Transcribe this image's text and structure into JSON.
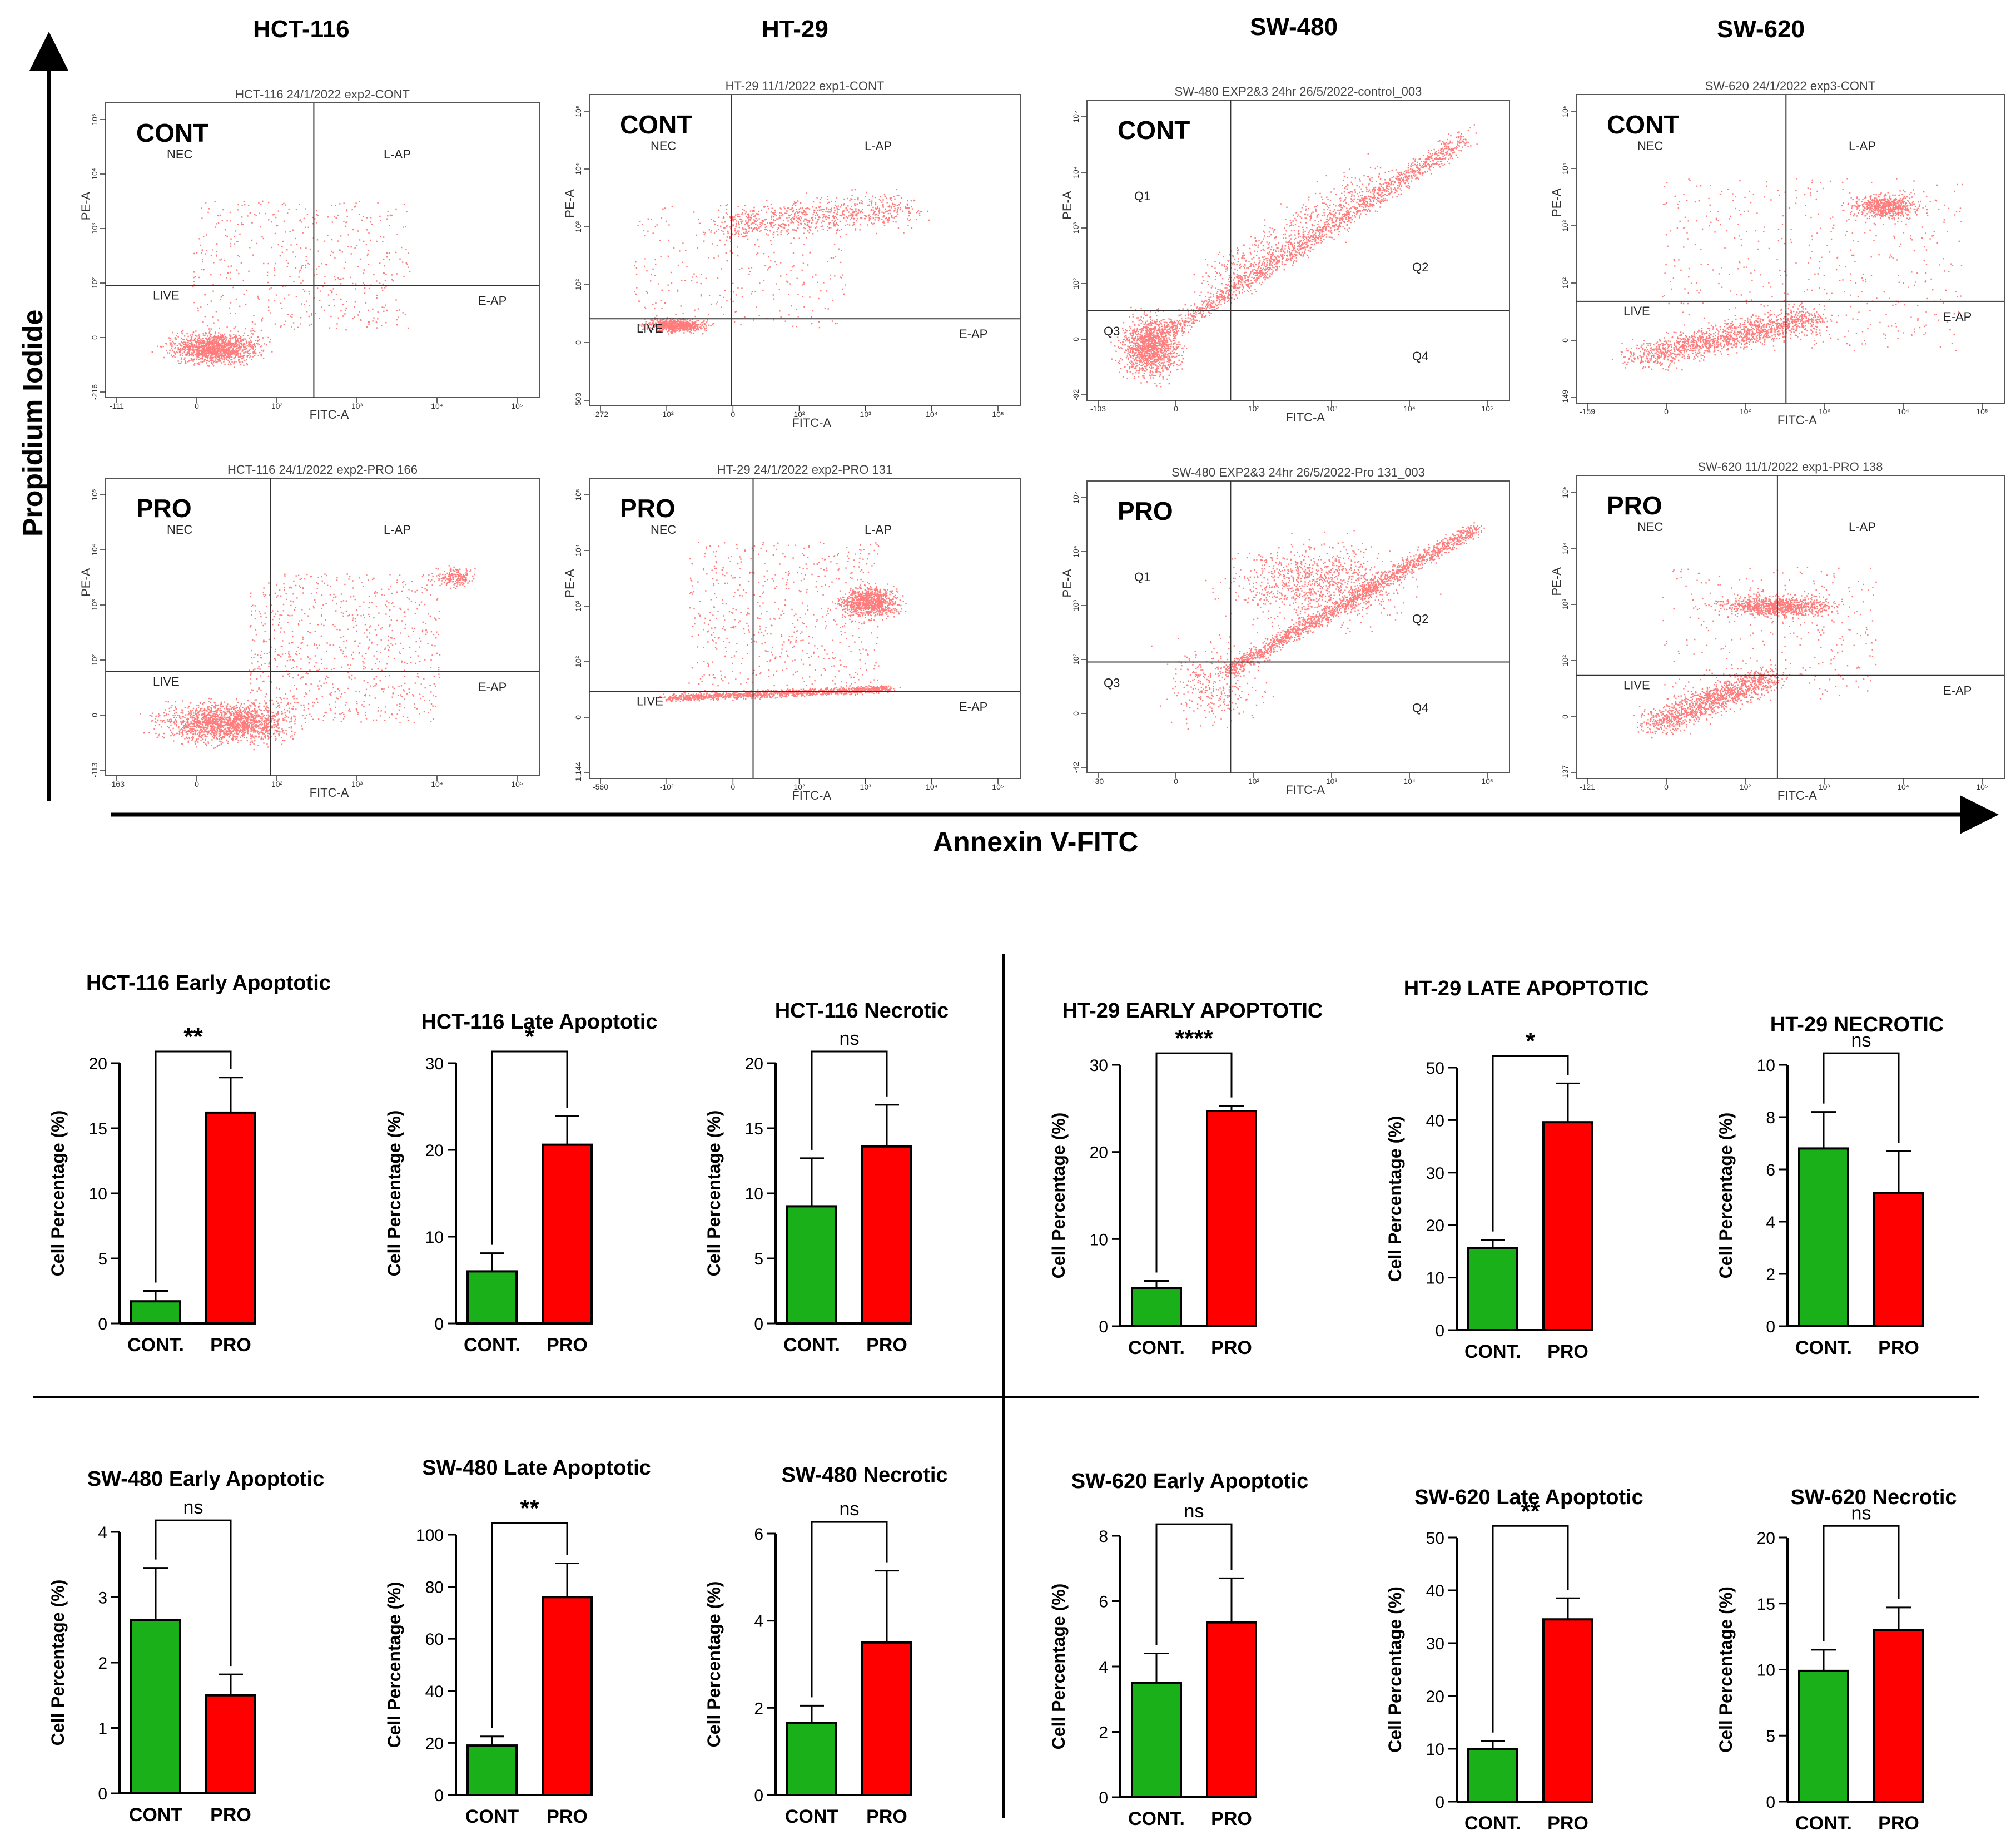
{
  "figure": {
    "cell_lines": [
      "HCT-116",
      "HT-29",
      "SW-480",
      "SW-620"
    ],
    "y_axis_label": "Propidium Iodide",
    "x_axis_label": "Annexin V-FITC",
    "row_labels": [
      "CONT",
      "PRO"
    ]
  },
  "flow_panels": [
    {
      "cell_line": "HCT-116",
      "condition": "CONT",
      "header": "HCT-116 24/1/2022 exp2-CONT",
      "quadrants": [
        "NEC",
        "L-AP",
        "LIVE",
        "E-AP"
      ],
      "x_axis": "FITC-A",
      "y_axis": "PE-A",
      "x_ticks": [
        "-111",
        "0",
        "10²",
        "10³",
        "10⁴",
        "10⁵"
      ],
      "y_ticks": [
        "-216",
        "0",
        "10²",
        "10³",
        "10⁴",
        "10⁵"
      ]
    },
    {
      "cell_line": "HT-29",
      "condition": "CONT",
      "header": "HT-29 11/1/2022 exp1-CONT",
      "quadrants": [
        "NEC",
        "L-AP",
        "LIVE",
        "E-AP"
      ],
      "x_axis": "FITC-A",
      "y_axis": "PE-A",
      "x_ticks": [
        "-272",
        "-10²",
        "0",
        "10²",
        "10³",
        "10⁴",
        "10⁵"
      ],
      "y_ticks": [
        "-503",
        "0",
        "10²",
        "10³",
        "10⁴",
        "10⁵"
      ]
    },
    {
      "cell_line": "SW-480",
      "condition": "CONT",
      "header": "SW-480 EXP2&3 24hr 26/5/2022-control_003",
      "quadrants": [
        "Q1",
        "Q2",
        "Q3",
        "Q4"
      ],
      "x_axis": "FITC-A",
      "y_axis": "PE-A",
      "x_ticks": [
        "-103",
        "0",
        "10²",
        "10³",
        "10⁴",
        "10⁵"
      ],
      "y_ticks": [
        "-92",
        "0",
        "10²",
        "10³",
        "10⁴",
        "10⁵"
      ]
    },
    {
      "cell_line": "SW-620",
      "condition": "CONT",
      "header": "SW-620 24/1/2022 exp3-CONT",
      "quadrants": [
        "NEC",
        "L-AP",
        "LIVE",
        "E-AP"
      ],
      "x_axis": "FITC-A",
      "y_axis": "PE-A",
      "x_ticks": [
        "-159",
        "0",
        "10²",
        "10³",
        "10⁴",
        "10⁵"
      ],
      "y_ticks": [
        "-149",
        "0",
        "10²",
        "10³",
        "10⁴",
        "10⁵"
      ]
    },
    {
      "cell_line": "HCT-116",
      "condition": "PRO",
      "header": "HCT-116 24/1/2022 exp2-PRO 166",
      "quadrants": [
        "NEC",
        "L-AP",
        "LIVE",
        "E-AP"
      ],
      "x_axis": "FITC-A",
      "y_axis": "PE-A",
      "x_ticks": [
        "-163",
        "0",
        "10²",
        "10³",
        "10⁴",
        "10⁵"
      ],
      "y_ticks": [
        "-113",
        "0",
        "10²",
        "10³",
        "10⁴",
        "10⁵"
      ]
    },
    {
      "cell_line": "HT-29",
      "condition": "PRO",
      "header": "HT-29 24/1/2022 exp2-PRO 131",
      "quadrants": [
        "NEC",
        "L-AP",
        "LIVE",
        "E-AP"
      ],
      "x_axis": "FITC-A",
      "y_axis": "PE-A",
      "x_ticks": [
        "-560",
        "-10²",
        "0",
        "10²",
        "10³",
        "10⁴",
        "10⁵"
      ],
      "y_ticks": [
        "-1,144",
        "0",
        "10²",
        "10³",
        "10⁴",
        "10⁵"
      ]
    },
    {
      "cell_line": "SW-480",
      "condition": "PRO",
      "header": "SW-480 EXP2&3 24hr 26/5/2022-Pro 131_003",
      "quadrants": [
        "Q1",
        "Q2",
        "Q3",
        "Q4"
      ],
      "x_axis": "FITC-A",
      "y_axis": "PE-A",
      "x_ticks": [
        "-30",
        "0",
        "10²",
        "10³",
        "10⁴",
        "10⁵"
      ],
      "y_ticks": [
        "-42",
        "0",
        "10²",
        "10³",
        "10⁴",
        "10⁵"
      ]
    },
    {
      "cell_line": "SW-620",
      "condition": "PRO",
      "header": "SW-620 11/1/2022 exp1-PRO 138",
      "quadrants": [
        "NEC",
        "L-AP",
        "LIVE",
        "E-AP"
      ],
      "x_axis": "FITC-A",
      "y_axis": "PE-A",
      "x_ticks": [
        "-121",
        "0",
        "10²",
        "10³",
        "10⁴",
        "10⁵"
      ],
      "y_ticks": [
        "-137",
        "0",
        "10²",
        "10³",
        "10⁴",
        "10⁵"
      ]
    }
  ],
  "colors": {
    "control": "#1ab01a",
    "pro": "#ff0000",
    "dots": "#ff1010",
    "text": "#000000"
  },
  "chart_data": [
    {
      "type": "bar",
      "title": "HCT-116 Early Apoptotic",
      "categories": [
        "CONT.",
        "PRO"
      ],
      "values": [
        1.7,
        16.2
      ],
      "errors": [
        0.8,
        2.7
      ],
      "ylim": [
        0,
        20
      ],
      "yticks": [
        "0",
        "5",
        "10",
        "15",
        "20"
      ],
      "ylabel": "Cell Percentage (%)",
      "significance": "**"
    },
    {
      "type": "bar",
      "title": "HCT-116 Late Apoptotic",
      "categories": [
        "CONT.",
        "PRO"
      ],
      "values": [
        6.0,
        20.6
      ],
      "errors": [
        2.1,
        3.3
      ],
      "ylim": [
        0,
        30
      ],
      "yticks": [
        "0",
        "10",
        "20",
        "30"
      ],
      "ylabel": "Cell Percentage (%)",
      "significance": "*"
    },
    {
      "type": "bar",
      "title": "HCT-116 Necrotic",
      "categories": [
        "CONT.",
        "PRO"
      ],
      "values": [
        9.0,
        13.6
      ],
      "errors": [
        3.7,
        3.2
      ],
      "ylim": [
        0,
        20
      ],
      "yticks": [
        "0",
        "5",
        "10",
        "15",
        "20"
      ],
      "ylabel": "Cell Percentage (%)",
      "significance": "ns"
    },
    {
      "type": "bar",
      "title": "HT-29 EARLY APOPTOTIC",
      "categories": [
        "CONT.",
        "PRO"
      ],
      "values": [
        4.4,
        24.7
      ],
      "errors": [
        0.8,
        0.6
      ],
      "ylim": [
        0,
        30
      ],
      "yticks": [
        "0",
        "10",
        "20",
        "30"
      ],
      "ylabel": "Cell Percentage (%)",
      "significance": "****"
    },
    {
      "type": "bar",
      "title": "HT-29 LATE APOPTOTIC",
      "categories": [
        "CONT.",
        "PRO"
      ],
      "values": [
        15.6,
        39.6
      ],
      "errors": [
        1.6,
        7.4
      ],
      "ylim": [
        0,
        50
      ],
      "yticks": [
        "0",
        "10",
        "20",
        "30",
        "40",
        "50"
      ],
      "ylabel": "Cell Percentage (%)",
      "significance": "*"
    },
    {
      "type": "bar",
      "title": "HT-29 NECROTIC",
      "categories": [
        "CONT.",
        "PRO"
      ],
      "values": [
        6.8,
        5.1
      ],
      "errors": [
        1.4,
        1.6
      ],
      "ylim": [
        0,
        10
      ],
      "yticks": [
        "0",
        "2",
        "4",
        "6",
        "8",
        "10"
      ],
      "ylabel": "Cell Percentage (%)",
      "significance": "ns"
    },
    {
      "type": "bar",
      "title": "SW-480 Early Apoptotic",
      "categories": [
        "CONT",
        "PRO"
      ],
      "values": [
        2.65,
        1.5
      ],
      "errors": [
        0.8,
        0.32
      ],
      "ylim": [
        0,
        4
      ],
      "yticks": [
        "0",
        "1",
        "2",
        "3",
        "4"
      ],
      "ylabel": "Cell Percentage (%)",
      "significance": "ns"
    },
    {
      "type": "bar",
      "title": "SW-480 Late Apoptotic",
      "categories": [
        "CONT",
        "PRO"
      ],
      "values": [
        19,
        76
      ],
      "errors": [
        3.5,
        13
      ],
      "ylim": [
        0,
        100
      ],
      "yticks": [
        "0",
        "20",
        "40",
        "60",
        "80",
        "100"
      ],
      "ylabel": "Cell Percentage (%)",
      "significance": "**"
    },
    {
      "type": "bar",
      "title": "SW-480 Necrotic",
      "categories": [
        "CONT",
        "PRO"
      ],
      "values": [
        1.65,
        3.5
      ],
      "errors": [
        0.4,
        1.65
      ],
      "ylim": [
        0,
        6
      ],
      "yticks": [
        "0",
        "2",
        "4",
        "6"
      ],
      "ylabel": "Cell Percentage (%)",
      "significance": "ns"
    },
    {
      "type": "bar",
      "title": "SW-620 Early Apoptotic",
      "categories": [
        "CONT.",
        "PRO"
      ],
      "values": [
        3.5,
        5.35
      ],
      "errors": [
        0.9,
        1.35
      ],
      "ylim": [
        0,
        8
      ],
      "yticks": [
        "0",
        "2",
        "4",
        "6",
        "8"
      ],
      "ylabel": "Cell Percentage (%)",
      "significance": "ns"
    },
    {
      "type": "bar",
      "title": "SW-620 Late Apoptotic",
      "categories": [
        "CONT.",
        "PRO"
      ],
      "values": [
        10,
        34.5
      ],
      "errors": [
        1.5,
        4
      ],
      "ylim": [
        0,
        50
      ],
      "yticks": [
        "0",
        "10",
        "20",
        "30",
        "40",
        "50"
      ],
      "ylabel": "Cell Percentage (%)",
      "significance": "**"
    },
    {
      "type": "bar",
      "title": "SW-620 Necrotic",
      "categories": [
        "CONT.",
        "PRO"
      ],
      "values": [
        9.9,
        13
      ],
      "errors": [
        1.6,
        1.7
      ],
      "ylim": [
        0,
        20
      ],
      "yticks": [
        "0",
        "5",
        "10",
        "15",
        "20"
      ],
      "ylabel": "Cell Percentage (%)",
      "significance": "ns"
    }
  ]
}
